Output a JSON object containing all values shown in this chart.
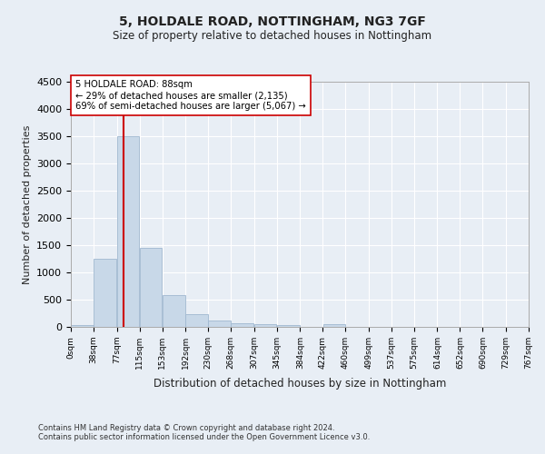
{
  "title1": "5, HOLDALE ROAD, NOTTINGHAM, NG3 7GF",
  "title2": "Size of property relative to detached houses in Nottingham",
  "xlabel": "Distribution of detached houses by size in Nottingham",
  "ylabel": "Number of detached properties",
  "bar_color": "#c8d8e8",
  "bar_edge_color": "#a0b8d0",
  "vline_color": "#cc0000",
  "vline_x": 88,
  "annotation_line1": "5 HOLDALE ROAD: 88sqm",
  "annotation_line2": "← 29% of detached houses are smaller (2,135)",
  "annotation_line3": "69% of semi-detached houses are larger (5,067) →",
  "annotation_box_color": "#ffffff",
  "annotation_box_edge": "#cc0000",
  "bins": [
    0,
    38,
    77,
    115,
    153,
    192,
    230,
    268,
    307,
    345,
    384,
    422,
    460,
    499,
    537,
    575,
    614,
    652,
    690,
    729,
    767
  ],
  "bin_labels": [
    "0sqm",
    "38sqm",
    "77sqm",
    "115sqm",
    "153sqm",
    "192sqm",
    "230sqm",
    "268sqm",
    "307sqm",
    "345sqm",
    "384sqm",
    "422sqm",
    "460sqm",
    "499sqm",
    "537sqm",
    "575sqm",
    "614sqm",
    "652sqm",
    "690sqm",
    "729sqm",
    "767sqm"
  ],
  "bar_heights": [
    35,
    1250,
    3500,
    1450,
    580,
    230,
    110,
    75,
    55,
    30,
    0,
    45,
    0,
    0,
    0,
    0,
    0,
    0,
    0,
    0
  ],
  "ylim": [
    0,
    4500
  ],
  "yticks": [
    0,
    500,
    1000,
    1500,
    2000,
    2500,
    3000,
    3500,
    4000,
    4500
  ],
  "footer1": "Contains HM Land Registry data © Crown copyright and database right 2024.",
  "footer2": "Contains public sector information licensed under the Open Government Licence v3.0.",
  "background_color": "#e8eef5",
  "plot_bg_color": "#e8eef5"
}
